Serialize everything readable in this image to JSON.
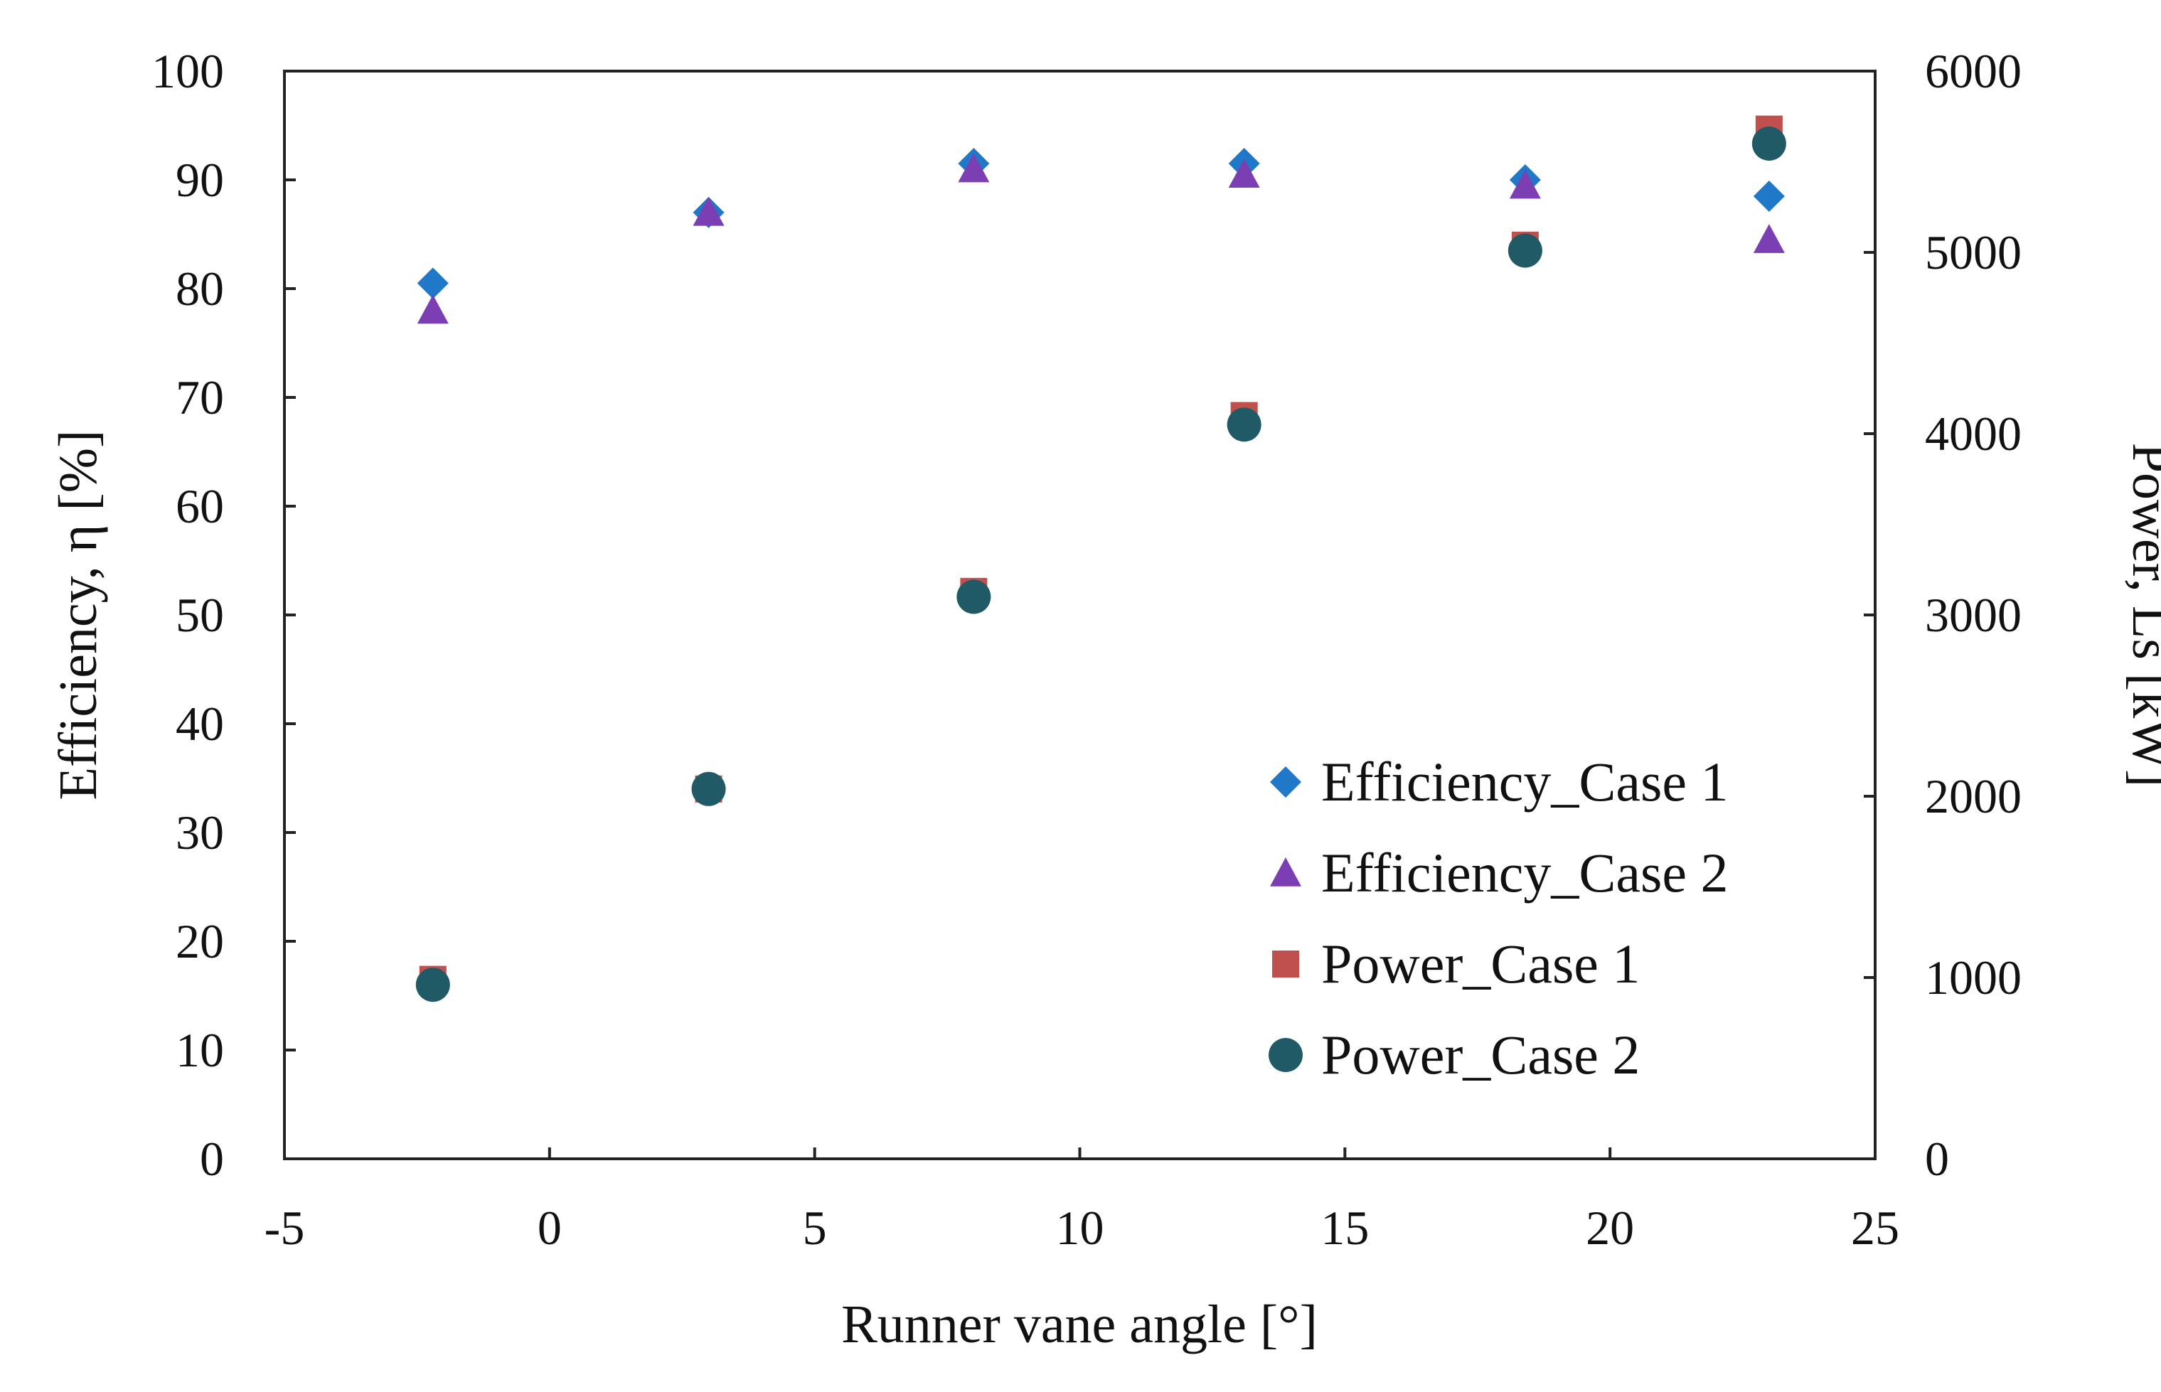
{
  "chart_data": {
    "type": "scatter",
    "title": "",
    "xlabel": "Runner vane angle [°]",
    "ylabel": "Efficiency, η [%]",
    "y2label": "Power, Ls [kW]",
    "xlim": [
      -5,
      25
    ],
    "ylim": [
      0,
      100
    ],
    "y2lim": [
      0,
      6000
    ],
    "x_ticks": [
      -5,
      0,
      5,
      10,
      15,
      20,
      25
    ],
    "x_tick_labels": [
      "-5",
      "0",
      "5",
      "10",
      "15",
      "20",
      "25"
    ],
    "y_ticks": [
      0,
      10,
      20,
      30,
      40,
      50,
      60,
      70,
      80,
      90,
      100
    ],
    "y_tick_labels": [
      "0",
      "10",
      "20",
      "30",
      "40",
      "50",
      "60",
      "70",
      "80",
      "90",
      "100"
    ],
    "y2_ticks": [
      0,
      1000,
      2000,
      3000,
      4000,
      5000,
      6000
    ],
    "y2_tick_labels": [
      "0",
      "1000",
      "2000",
      "3000",
      "4000",
      "5000",
      "6000"
    ],
    "grid": false,
    "legend_position": "bottom-right",
    "series": [
      {
        "name": "Efficiency_Case 1",
        "axis": "left",
        "marker": "diamond",
        "color": "#1f78c8",
        "x": [
          -2.2,
          3.0,
          8.0,
          13.1,
          18.4,
          23.0
        ],
        "values": [
          80.5,
          87.0,
          91.5,
          91.5,
          90.0,
          88.5
        ]
      },
      {
        "name": "Efficiency_Case 2",
        "axis": "left",
        "marker": "triangle",
        "color": "#7b3fb3",
        "x": [
          -2.2,
          3.0,
          8.0,
          13.1,
          18.4,
          23.0
        ],
        "values": [
          78.0,
          87.0,
          91.0,
          90.5,
          89.5,
          84.5
        ]
      },
      {
        "name": "Power_Case 1",
        "axis": "right",
        "marker": "square",
        "color": "#c0504d",
        "x": [
          -2.2,
          3.0,
          8.0,
          13.1,
          18.4,
          23.0
        ],
        "values": [
          990,
          2040,
          3130,
          4100,
          5040,
          5680
        ]
      },
      {
        "name": "Power_Case 2",
        "axis": "right",
        "marker": "circle",
        "color": "#1f5a66",
        "x": [
          -2.2,
          3.0,
          8.0,
          13.1,
          18.4,
          23.0
        ],
        "values": [
          960,
          2040,
          3100,
          4050,
          5010,
          5600
        ]
      }
    ]
  }
}
